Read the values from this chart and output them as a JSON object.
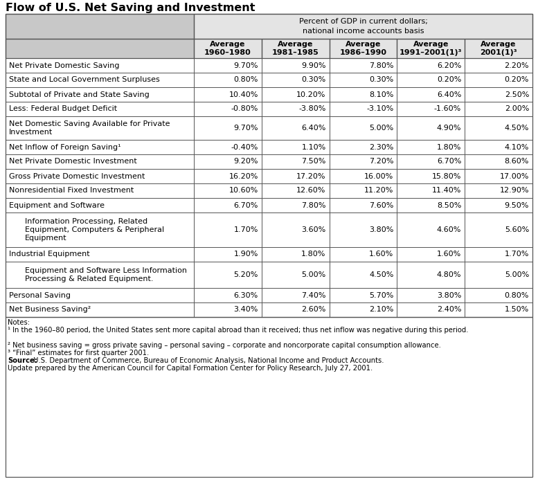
{
  "title": "Flow of U.S. Net Saving and Investment",
  "header_top": "Percent of GDP in current dollars;\nnational income accounts basis",
  "col_headers": [
    "Average\n1960–1980",
    "Average\n1981–1985",
    "Average\n1986–1990",
    "Average\n1991–2001(1)³",
    "Average\n2001(1)³"
  ],
  "rows": [
    {
      "label": "Net Private Domestic Saving",
      "indent": 0,
      "values": [
        "9.70%",
        "9.90%",
        "7.80%",
        "6.20%",
        "2.20%"
      ]
    },
    {
      "label": "State and Local Government Surpluses",
      "indent": 0,
      "values": [
        "0.80%",
        "0.30%",
        "0.30%",
        "0.20%",
        "0.20%"
      ]
    },
    {
      "label": "Subtotal of Private and State Saving",
      "indent": 0,
      "values": [
        "10.40%",
        "10.20%",
        "8.10%",
        "6.40%",
        "2.50%"
      ]
    },
    {
      "label": "Less: Federal Budget Deficit",
      "indent": 0,
      "values": [
        "-0.80%",
        "-3.80%",
        "-3.10%",
        "-1.60%",
        "2.00%"
      ]
    },
    {
      "label": "Net Domestic Saving Available for Private\nInvestment",
      "indent": 0,
      "values": [
        "9.70%",
        "6.40%",
        "5.00%",
        "4.90%",
        "4.50%"
      ]
    },
    {
      "label": "Net Inflow of Foreign Saving¹",
      "indent": 0,
      "values": [
        "-0.40%",
        "1.10%",
        "2.30%",
        "1.80%",
        "4.10%"
      ]
    },
    {
      "label": "Net Private Domestic Investment",
      "indent": 0,
      "values": [
        "9.20%",
        "7.50%",
        "7.20%",
        "6.70%",
        "8.60%"
      ]
    },
    {
      "label": "Gross Private Domestic Investment",
      "indent": 0,
      "values": [
        "16.20%",
        "17.20%",
        "16.00%",
        "15.80%",
        "17.00%"
      ]
    },
    {
      "label": "Nonresidential Fixed Investment",
      "indent": 0,
      "values": [
        "10.60%",
        "12.60%",
        "11.20%",
        "11.40%",
        "12.90%"
      ]
    },
    {
      "label": "Equipment and Software",
      "indent": 0,
      "values": [
        "6.70%",
        "7.80%",
        "7.60%",
        "8.50%",
        "9.50%"
      ]
    },
    {
      "label": "Information Processing, Related\nEquipment, Computers & Peripheral\nEquipment",
      "indent": 1,
      "values": [
        "1.70%",
        "3.60%",
        "3.80%",
        "4.60%",
        "5.60%"
      ]
    },
    {
      "label": "Industrial Equipment",
      "indent": 0,
      "values": [
        "1.90%",
        "1.80%",
        "1.60%",
        "1.60%",
        "1.70%"
      ]
    },
    {
      "label": "Equipment and Software Less Information\nProcessing & Related Equipment.",
      "indent": 1,
      "values": [
        "5.20%",
        "5.00%",
        "4.50%",
        "4.80%",
        "5.00%"
      ]
    },
    {
      "label": "Personal Saving",
      "indent": 0,
      "values": [
        "6.30%",
        "7.40%",
        "5.70%",
        "3.80%",
        "0.80%"
      ]
    },
    {
      "label": "Net Business Saving²",
      "indent": 0,
      "values": [
        "3.40%",
        "2.60%",
        "2.10%",
        "2.40%",
        "1.50%"
      ]
    }
  ],
  "notes_label": "Notes:",
  "note1": "¹ In the 1960–80 period, the United States sent more capital abroad than it received; thus net inflow was negative during this period.",
  "note2": "² Net business saving = gross private saving – personal saving – corporate and noncorporate capital consumption allowance.",
  "note3": "³ “Final” estimates for first quarter 2001.",
  "source_label": "Source:",
  "source_text": " U.S. Department of Commerce, Bureau of Economic Analysis, National Income and Product Accounts.",
  "source_text2": "Update prepared by the American Council for Capital Formation Center for Policy Research, July 27, 2001.",
  "bg_gray_dark": "#c8c8c8",
  "bg_gray_light": "#e4e4e4",
  "bg_white": "#ffffff",
  "border_color": "#555555",
  "title_fontsize": 11.5,
  "header_fontsize": 8.0,
  "cell_fontsize": 8.0,
  "notes_fontsize": 7.2
}
